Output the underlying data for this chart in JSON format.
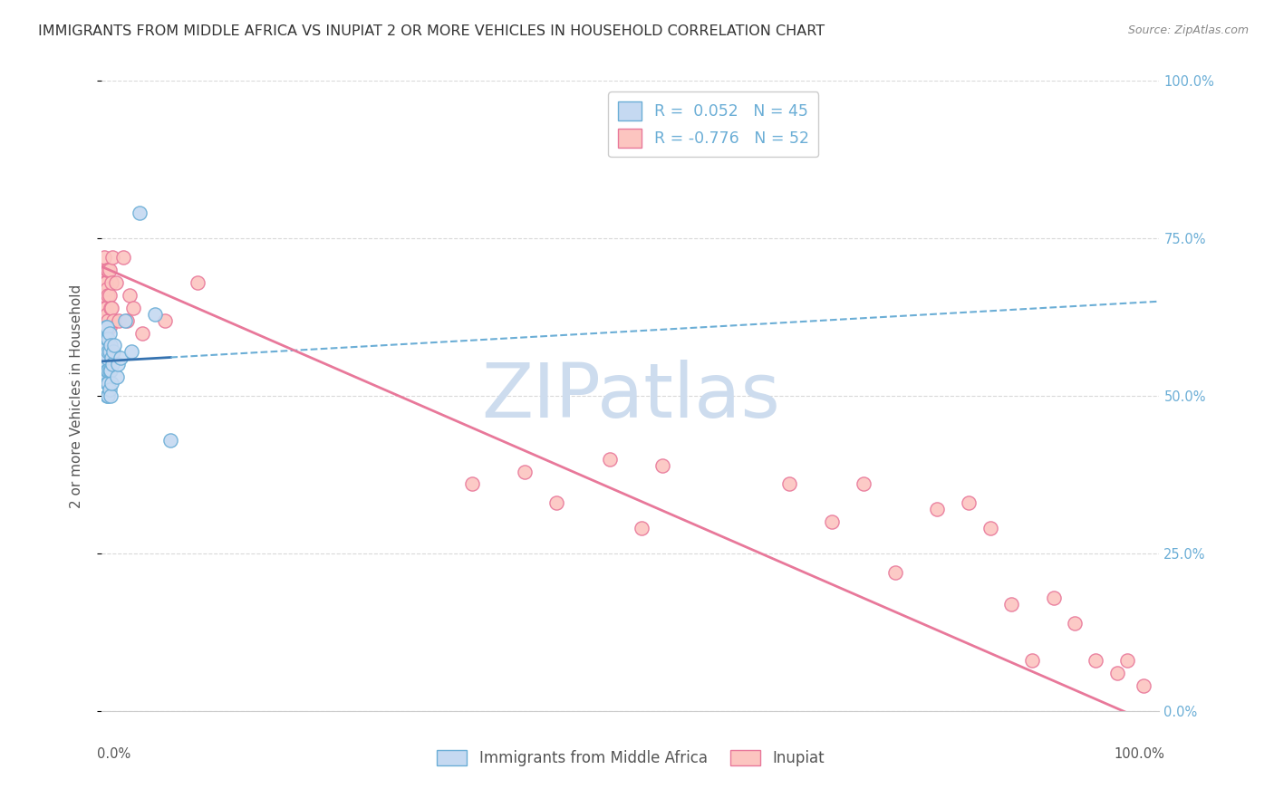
{
  "title": "IMMIGRANTS FROM MIDDLE AFRICA VS INUPIAT 2 OR MORE VEHICLES IN HOUSEHOLD CORRELATION CHART",
  "source": "Source: ZipAtlas.com",
  "ylabel": "2 or more Vehicles in Household",
  "yticks": [
    "0.0%",
    "25.0%",
    "50.0%",
    "75.0%",
    "100.0%"
  ],
  "ytick_vals": [
    0.0,
    0.25,
    0.5,
    0.75,
    1.0
  ],
  "xlim": [
    0.0,
    1.0
  ],
  "ylim": [
    0.0,
    1.0
  ],
  "watermark": "ZIPatlas",
  "series1": {
    "name": "Immigrants from Middle Africa",
    "color": "#c5d9f1",
    "edge_color": "#6baed6",
    "x": [
      0.001,
      0.001,
      0.002,
      0.002,
      0.003,
      0.003,
      0.003,
      0.003,
      0.004,
      0.004,
      0.004,
      0.004,
      0.004,
      0.005,
      0.005,
      0.005,
      0.005,
      0.005,
      0.005,
      0.005,
      0.006,
      0.006,
      0.006,
      0.006,
      0.006,
      0.007,
      0.007,
      0.007,
      0.007,
      0.008,
      0.008,
      0.008,
      0.009,
      0.009,
      0.01,
      0.011,
      0.012,
      0.014,
      0.015,
      0.018,
      0.022,
      0.028,
      0.036,
      0.05,
      0.065
    ],
    "y": [
      0.55,
      0.57,
      0.57,
      0.6,
      0.53,
      0.55,
      0.58,
      0.6,
      0.53,
      0.55,
      0.57,
      0.59,
      0.61,
      0.5,
      0.52,
      0.54,
      0.56,
      0.58,
      0.59,
      0.61,
      0.5,
      0.52,
      0.54,
      0.57,
      0.59,
      0.51,
      0.54,
      0.57,
      0.6,
      0.5,
      0.54,
      0.58,
      0.52,
      0.56,
      0.55,
      0.57,
      0.58,
      0.53,
      0.55,
      0.56,
      0.62,
      0.57,
      0.79,
      0.63,
      0.43
    ]
  },
  "series2": {
    "name": "Inupiat",
    "color": "#fcc5c0",
    "edge_color": "#e8789a",
    "x": [
      0.001,
      0.001,
      0.002,
      0.002,
      0.003,
      0.003,
      0.004,
      0.004,
      0.005,
      0.005,
      0.005,
      0.006,
      0.006,
      0.006,
      0.007,
      0.007,
      0.007,
      0.008,
      0.009,
      0.009,
      0.01,
      0.011,
      0.013,
      0.016,
      0.02,
      0.024,
      0.026,
      0.03,
      0.038,
      0.06,
      0.09,
      0.35,
      0.4,
      0.43,
      0.48,
      0.51,
      0.53,
      0.65,
      0.69,
      0.72,
      0.75,
      0.79,
      0.82,
      0.84,
      0.86,
      0.88,
      0.9,
      0.92,
      0.94,
      0.96,
      0.97,
      0.985
    ],
    "y": [
      0.64,
      0.7,
      0.66,
      0.72,
      0.64,
      0.68,
      0.64,
      0.68,
      0.63,
      0.67,
      0.7,
      0.62,
      0.66,
      0.7,
      0.61,
      0.66,
      0.7,
      0.64,
      0.64,
      0.68,
      0.72,
      0.62,
      0.68,
      0.62,
      0.72,
      0.62,
      0.66,
      0.64,
      0.6,
      0.62,
      0.68,
      0.36,
      0.38,
      0.33,
      0.4,
      0.29,
      0.39,
      0.36,
      0.3,
      0.36,
      0.22,
      0.32,
      0.33,
      0.29,
      0.17,
      0.08,
      0.18,
      0.14,
      0.08,
      0.06,
      0.08,
      0.04
    ]
  },
  "trendline1": {
    "y_intercept": 0.555,
    "slope": 0.095,
    "data_extent": 0.065,
    "color_solid": "#3572b0",
    "color_dashed": "#6baed6"
  },
  "trendline2": {
    "y_intercept": 0.705,
    "slope": -0.73,
    "color": "#e8789a"
  },
  "background_color": "#ffffff",
  "grid_color": "#d9d9d9",
  "title_fontsize": 11.5,
  "axis_label_fontsize": 11,
  "tick_fontsize": 10.5,
  "watermark_color": "#cddcee",
  "watermark_fontsize": 60
}
